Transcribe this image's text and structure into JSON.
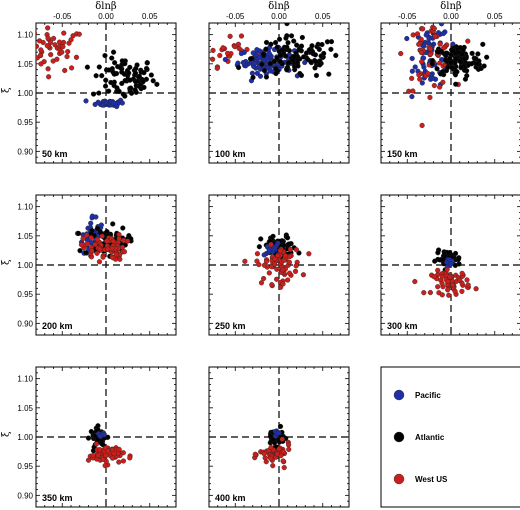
{
  "chart_data": {
    "type": "scatter",
    "xlabel": "δlnβ",
    "ylabel": "ξ",
    "xlim": [
      -0.08,
      0.08
    ],
    "ylim": [
      0.88,
      1.12
    ],
    "xticks": [
      "-0.05",
      "0.00",
      "0.05"
    ],
    "yticks": [
      "0.90",
      "0.95",
      "1.00",
      "1.05",
      "1.10"
    ],
    "reference_lines": {
      "x": 0.0,
      "y": 1.0,
      "style": "dashed"
    },
    "legend": {
      "placement": "bottom-right",
      "entries": [
        {
          "name": "Pacific",
          "color": "#1f2fa8"
        },
        {
          "name": "Atlantic",
          "color": "#000000"
        },
        {
          "name": "West US",
          "color": "#c8201c"
        }
      ]
    },
    "panels": [
      {
        "label": "50 km",
        "clusters": [
          {
            "series": "West US",
            "n": 55,
            "center": [
              -0.06,
              1.075
            ],
            "spread": [
              0.018,
              0.018
            ]
          },
          {
            "series": "Atlantic",
            "n": 85,
            "center": [
              0.02,
              1.025
            ],
            "spread": [
              0.018,
              0.018
            ]
          },
          {
            "series": "Pacific",
            "n": 40,
            "center": [
              0.005,
              0.983
            ],
            "spread": [
              0.008,
              0.003
            ]
          }
        ]
      },
      {
        "label": "100 km",
        "clusters": [
          {
            "series": "West US",
            "n": 25,
            "center": [
              -0.055,
              1.07
            ],
            "spread": [
              0.015,
              0.012
            ]
          },
          {
            "series": "Pacific",
            "n": 110,
            "center": [
              -0.015,
              1.055
            ],
            "spread": [
              0.016,
              0.01
            ]
          },
          {
            "series": "Atlantic",
            "n": 110,
            "center": [
              0.02,
              1.06
            ],
            "spread": [
              0.025,
              0.018
            ]
          }
        ]
      },
      {
        "label": "150 km",
        "clusters": [
          {
            "series": "Pacific",
            "n": 70,
            "center": [
              -0.022,
              1.065
            ],
            "spread": [
              0.01,
              0.028
            ]
          },
          {
            "series": "West US",
            "n": 55,
            "center": [
              -0.025,
              1.065
            ],
            "spread": [
              0.014,
              0.03
            ]
          },
          {
            "series": "Atlantic",
            "n": 110,
            "center": [
              0.008,
              1.055
            ],
            "spread": [
              0.014,
              0.014
            ]
          }
        ]
      },
      {
        "label": "200 km",
        "clusters": [
          {
            "series": "Pacific",
            "n": 45,
            "center": [
              -0.015,
              1.05
            ],
            "spread": [
              0.006,
              0.018
            ]
          },
          {
            "series": "Atlantic",
            "n": 70,
            "center": [
              0.0,
              1.04
            ],
            "spread": [
              0.012,
              0.013
            ]
          },
          {
            "series": "West US",
            "n": 70,
            "center": [
              -0.002,
              1.03
            ],
            "spread": [
              0.012,
              0.011
            ]
          }
        ]
      },
      {
        "label": "250 km",
        "clusters": [
          {
            "series": "Atlantic",
            "n": 70,
            "center": [
              0.0,
              1.03
            ],
            "spread": [
              0.01,
              0.01
            ]
          },
          {
            "series": "Pacific",
            "n": 15,
            "center": [
              -0.008,
              1.025
            ],
            "spread": [
              0.004,
              0.006
            ]
          },
          {
            "series": "West US",
            "n": 70,
            "center": [
              0.0,
              1.0
            ],
            "spread": [
              0.013,
              0.016
            ]
          }
        ]
      },
      {
        "label": "300 km",
        "clusters": [
          {
            "series": "Atlantic",
            "n": 45,
            "center": [
              -0.003,
              1.01
            ],
            "spread": [
              0.007,
              0.007
            ]
          },
          {
            "series": "Pacific",
            "n": 10,
            "center": [
              0.0,
              1.005
            ],
            "spread": [
              0.003,
              0.003
            ]
          },
          {
            "series": "West US",
            "n": 60,
            "center": [
              0.0,
              0.97
            ],
            "spread": [
              0.011,
              0.01
            ]
          }
        ]
      },
      {
        "label": "350 km",
        "clusters": [
          {
            "series": "Atlantic",
            "n": 40,
            "center": [
              -0.008,
              1.0
            ],
            "spread": [
              0.005,
              0.008
            ]
          },
          {
            "series": "Pacific",
            "n": 8,
            "center": [
              -0.006,
              1.003
            ],
            "spread": [
              0.002,
              0.003
            ]
          },
          {
            "series": "West US",
            "n": 55,
            "center": [
              0.0,
              0.97
            ],
            "spread": [
              0.01,
              0.008
            ]
          }
        ]
      },
      {
        "label": "400 km",
        "clusters": [
          {
            "series": "Atlantic",
            "n": 40,
            "center": [
              -0.004,
              1.0
            ],
            "spread": [
              0.005,
              0.007
            ]
          },
          {
            "series": "Pacific",
            "n": 6,
            "center": [
              -0.002,
              1.002
            ],
            "spread": [
              0.002,
              0.003
            ]
          },
          {
            "series": "West US",
            "n": 55,
            "center": [
              -0.004,
              0.97
            ],
            "spread": [
              0.009,
              0.009
            ]
          }
        ]
      }
    ]
  }
}
